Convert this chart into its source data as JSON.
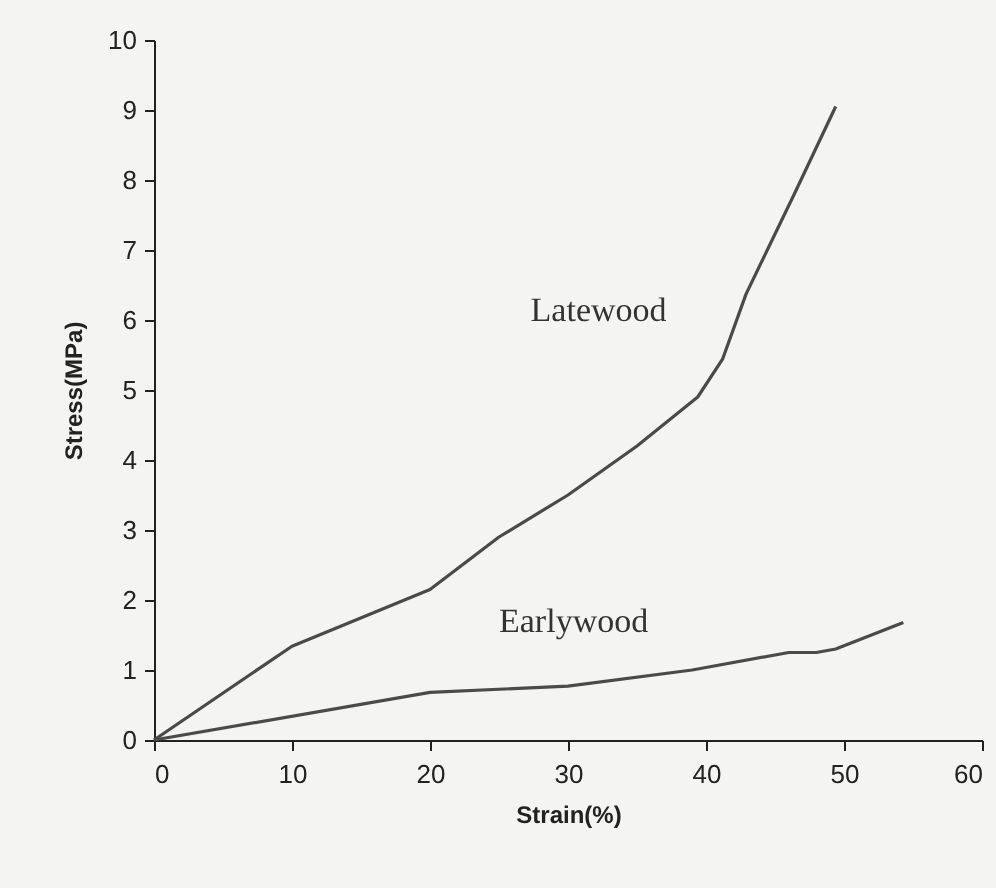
{
  "chart_data": {
    "type": "line",
    "xlabel": "Strain(%)",
    "ylabel": "Stress(MPa)",
    "xlim": [
      0,
      60
    ],
    "xticks": [
      0,
      10,
      20,
      30,
      40,
      50,
      60
    ],
    "ylim": [
      0,
      10
    ],
    "yticks": [
      0,
      1,
      2,
      3,
      4,
      5,
      6,
      7,
      8,
      9,
      10
    ],
    "grid": false,
    "legend": false,
    "marker": "none",
    "line_style": "solid",
    "series": [
      {
        "name": "Latewood",
        "color": "#4a4a4a",
        "x": [
          0,
          10,
          20,
          25,
          30,
          35,
          39.4,
          41.2,
          42.9,
          46.4,
          49.4
        ],
        "values": [
          0,
          1.34,
          2.15,
          2.9,
          3.5,
          4.2,
          4.9,
          5.44,
          6.37,
          7.8,
          9.05
        ]
      },
      {
        "name": "Earlywood",
        "color": "#4a4a4a",
        "x": [
          0,
          20,
          30,
          39,
          46,
          48,
          49.4,
          54.3
        ],
        "values": [
          0,
          0.68,
          0.77,
          1.0,
          1.25,
          1.25,
          1.3,
          1.68
        ]
      }
    ]
  }
}
